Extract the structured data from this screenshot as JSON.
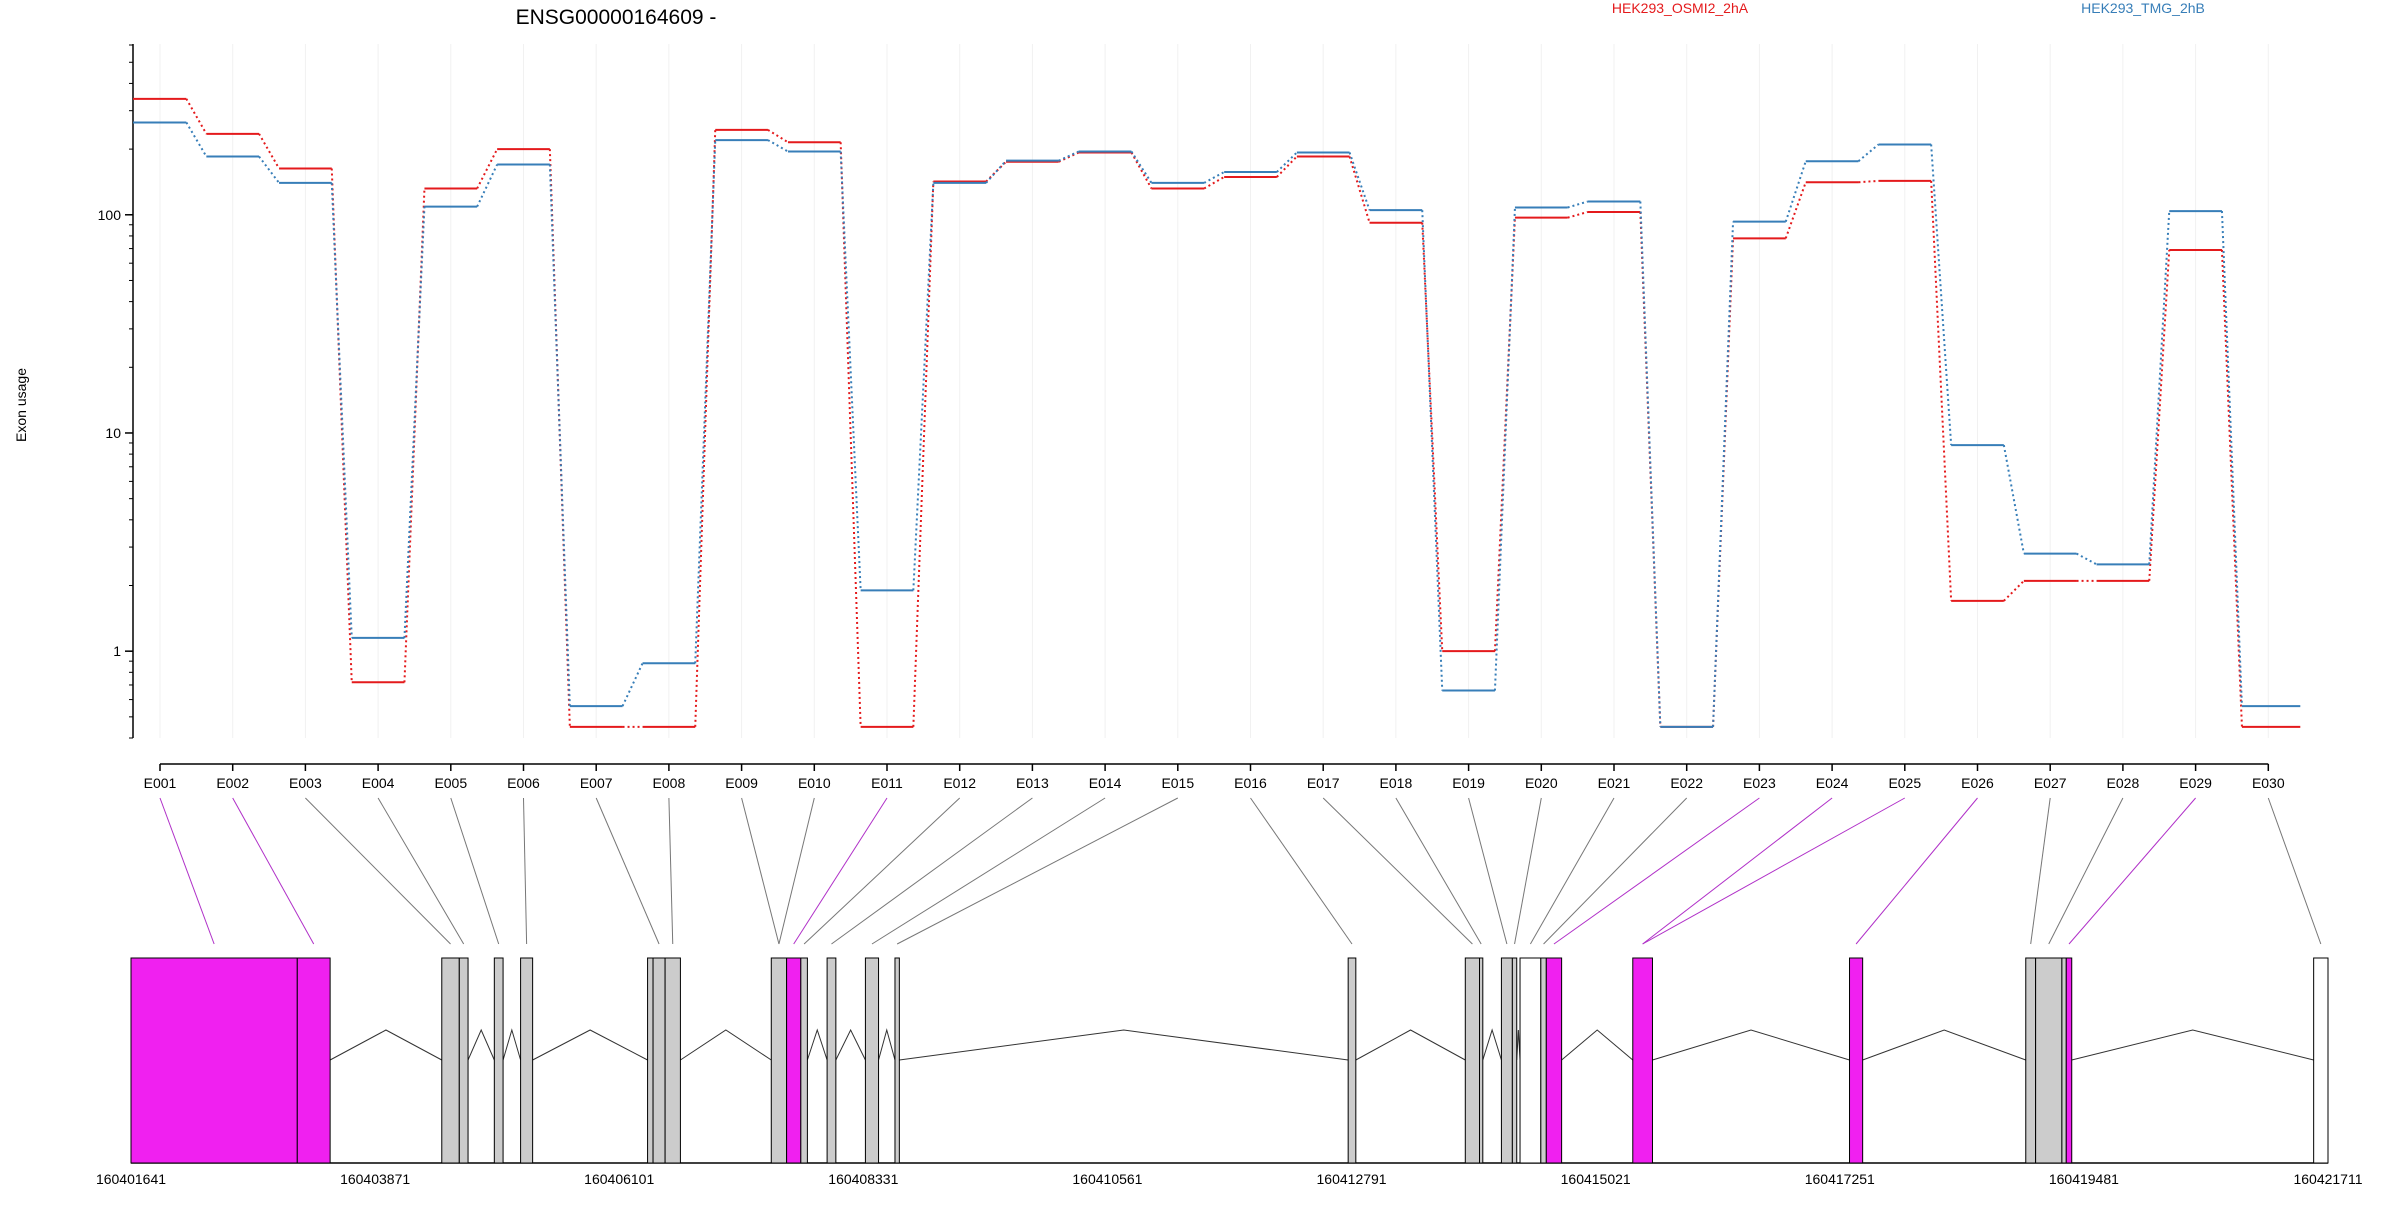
{
  "chart_data": {
    "type": "line",
    "title": "ENSG00000164609 -",
    "ylabel": "Exon usage",
    "xlabel": "",
    "y_scale": "log",
    "ylim": [
      0.4,
      600
    ],
    "y_ticks": [
      1,
      10,
      100
    ],
    "y_tick_labels": [
      "1",
      "10",
      "100"
    ],
    "grid": "vertical lines at exons",
    "legend_position": "top-right",
    "categories": [
      "E001",
      "E002",
      "E003",
      "E004",
      "E005",
      "E006",
      "E007",
      "E008",
      "E009",
      "E010",
      "E011",
      "E012",
      "E013",
      "E014",
      "E015",
      "E016",
      "E017",
      "E018",
      "E019",
      "E020",
      "E021",
      "E022",
      "E023",
      "E024",
      "E025",
      "E026",
      "E027",
      "E028",
      "E029",
      "E030"
    ],
    "series": [
      {
        "name": "HEK293_OSMI2_2hA",
        "color": "#e41a1c",
        "values": [
          340,
          235,
          163,
          0.72,
          132,
          200,
          0.45,
          0.45,
          245,
          215,
          0.45,
          142,
          175,
          193,
          132,
          149,
          185,
          92,
          1.0,
          97,
          103,
          0.45,
          78,
          141,
          143,
          1.7,
          2.1,
          2.1,
          69,
          0.45
        ]
      },
      {
        "name": "HEK293_TMG_2hB",
        "color": "#377eb8",
        "values": [
          265,
          185,
          140,
          1.15,
          109,
          170,
          0.56,
          0.88,
          220,
          195,
          1.9,
          140,
          177,
          195,
          140,
          157,
          193,
          105,
          0.66,
          108,
          115,
          0.45,
          93,
          176,
          210,
          8.8,
          2.8,
          2.5,
          104,
          0.56
        ]
      }
    ],
    "gene_model": {
      "genomic_axis_ticks": [
        "160401641",
        "160403871",
        "160406101",
        "160408331",
        "160410561",
        "160412791",
        "160415021",
        "160417251",
        "160419481",
        "160421711"
      ],
      "highlight_color": "#f020f0",
      "exon_color": "#cccccc",
      "exons": [
        {
          "start": 160401641,
          "end": 160403160,
          "hl": true
        },
        {
          "start": 160403160,
          "end": 160403460,
          "hl": true
        },
        {
          "start": 160404480,
          "end": 160404640,
          "hl": false
        },
        {
          "start": 160404640,
          "end": 160404720,
          "hl": false
        },
        {
          "start": 160404960,
          "end": 160405040,
          "hl": false
        },
        {
          "start": 160405200,
          "end": 160405310,
          "hl": false
        },
        {
          "start": 160406360,
          "end": 160406410,
          "hl": false
        },
        {
          "start": 160406410,
          "end": 160406520,
          "hl": false
        },
        {
          "start": 160406520,
          "end": 160406660,
          "hl": false
        },
        {
          "start": 160407490,
          "end": 160407630,
          "hl": false
        },
        {
          "start": 160407630,
          "end": 160407760,
          "hl": true
        },
        {
          "start": 160407760,
          "end": 160407820,
          "hl": false
        },
        {
          "start": 160408000,
          "end": 160408080,
          "hl": false
        },
        {
          "start": 160408350,
          "end": 160408470,
          "hl": false
        },
        {
          "start": 160408620,
          "end": 160408660,
          "hl": false
        },
        {
          "start": 160412760,
          "end": 160412830,
          "hl": false
        },
        {
          "start": 160413830,
          "end": 160413960,
          "hl": false
        },
        {
          "start": 160413960,
          "end": 160413990,
          "hl": false
        },
        {
          "start": 160414160,
          "end": 160414260,
          "hl": false
        },
        {
          "start": 160414260,
          "end": 160414300,
          "hl": false
        },
        {
          "start": 160414330,
          "end": 160414520,
          "hl": false
        },
        {
          "start": 160414520,
          "end": 160414570,
          "hl": false
        },
        {
          "start": 160414570,
          "end": 160414710,
          "hl": true
        },
        {
          "start": 160415360,
          "end": 160415540,
          "hl": true
        },
        {
          "start": 160417340,
          "end": 160417460,
          "hl": true
        },
        {
          "start": 160418950,
          "end": 160419040,
          "hl": false
        },
        {
          "start": 160419040,
          "end": 160419280,
          "hl": false
        },
        {
          "start": 160419280,
          "end": 160419320,
          "hl": false
        },
        {
          "start": 160419320,
          "end": 160419370,
          "hl": true
        },
        {
          "start": 160421580,
          "end": 160421711,
          "hl": false
        }
      ],
      "connector_pairs": [
        [
          1,
          0
        ],
        [
          2,
          1
        ],
        [
          3,
          2
        ],
        [
          4,
          3
        ],
        [
          5,
          4
        ],
        [
          6,
          5
        ],
        [
          7,
          7
        ],
        [
          8,
          8
        ],
        [
          9,
          9
        ],
        [
          10,
          9
        ],
        [
          11,
          10
        ],
        [
          12,
          11
        ],
        [
          13,
          12
        ],
        [
          14,
          13
        ],
        [
          15,
          14
        ],
        [
          16,
          15
        ],
        [
          17,
          16
        ],
        [
          18,
          17
        ],
        [
          19,
          18
        ],
        [
          20,
          19
        ],
        [
          21,
          20
        ],
        [
          22,
          21
        ],
        [
          23,
          22
        ],
        [
          24,
          23
        ],
        [
          25,
          23
        ],
        [
          26,
          24
        ],
        [
          27,
          25
        ],
        [
          28,
          26
        ],
        [
          29,
          28
        ],
        [
          30,
          29
        ]
      ]
    }
  }
}
